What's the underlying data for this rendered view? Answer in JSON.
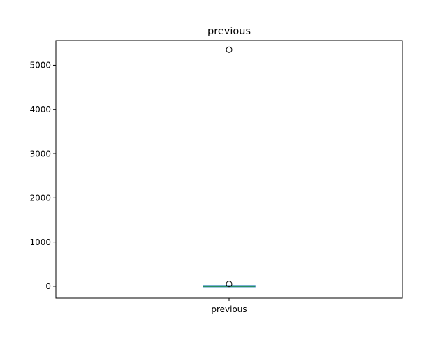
{
  "chart_data": {
    "type": "box",
    "title": "previous",
    "xlabel": "",
    "ylabel": "",
    "categories": [
      "previous"
    ],
    "ylim": [
      -270,
      5560
    ],
    "yticks": [
      0,
      1000,
      2000,
      3000,
      4000,
      5000
    ],
    "ytick_labels": [
      "0",
      "1000",
      "2000",
      "3000",
      "4000",
      "5000"
    ],
    "grid": false,
    "boxes": [
      {
        "name": "previous",
        "whisker_low": 0,
        "q1": 0,
        "median": 0,
        "q3": 0,
        "whisker_high": 0,
        "outliers": [
          50,
          5350
        ]
      }
    ],
    "colors": {
      "box": "#1f77b4",
      "median": "#2ca02c",
      "whisker": "#000000",
      "outlier_edge": "#000000"
    }
  }
}
